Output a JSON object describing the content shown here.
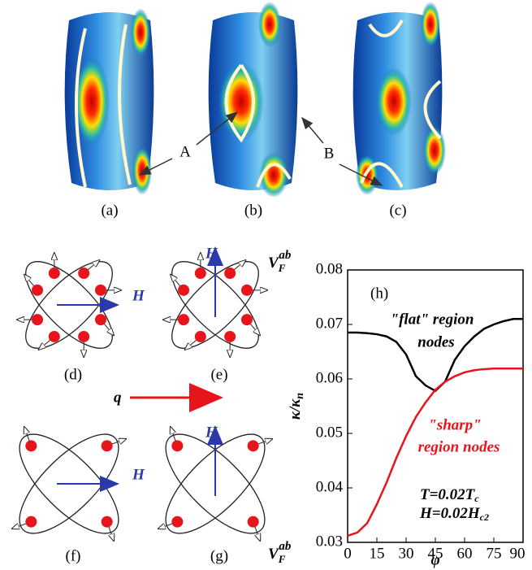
{
  "top": {
    "labels": [
      "(a)",
      "(b)",
      "(c)"
    ],
    "callouts": [
      "A",
      "B"
    ]
  },
  "diagrams": [
    {
      "label": "(d)",
      "field": "H"
    },
    {
      "label": "(e)",
      "field": "H",
      "velocity": {
        "main": "V",
        "sub": "F",
        "sup": "ab"
      }
    },
    {
      "label": "(f)",
      "field": "H"
    },
    {
      "label": "(g)",
      "field": "H",
      "velocity": {
        "main": "V",
        "sub": "F",
        "sup": "ab"
      }
    }
  ],
  "wavevector": "q",
  "chart_data": {
    "type": "line",
    "panel_label": "(h)",
    "xlabel": "φ",
    "ylabel": "κ/κ",
    "ylabel_sub": "n",
    "x": [
      0,
      5,
      10,
      15,
      20,
      25,
      30,
      35,
      40,
      45,
      50,
      55,
      60,
      65,
      70,
      75,
      80,
      85,
      90
    ],
    "series": [
      {
        "color": "#000000",
        "values": [
          0.0685,
          0.0685,
          0.0684,
          0.0682,
          0.0678,
          0.0668,
          0.0645,
          0.0605,
          0.0588,
          0.0578,
          0.0595,
          0.0635,
          0.066,
          0.0678,
          0.0692,
          0.07,
          0.0706,
          0.071,
          0.071
        ]
      },
      {
        "color": "#e8141c",
        "values": [
          0.0312,
          0.0318,
          0.0335,
          0.037,
          0.041,
          0.0455,
          0.0495,
          0.053,
          0.0557,
          0.058,
          0.0595,
          0.0605,
          0.0612,
          0.0616,
          0.0618,
          0.0619,
          0.0619,
          0.0619,
          0.0619
        ]
      }
    ],
    "xlim": [
      0,
      90
    ],
    "xticks": [
      0,
      15,
      30,
      45,
      60,
      75,
      90
    ],
    "ylim": [
      0.03,
      0.08
    ],
    "yticks": [
      0.03,
      0.04,
      0.05,
      0.06,
      0.07,
      0.08
    ],
    "annotations": {
      "flat_1": "\"flat\" region",
      "flat_2": "nodes",
      "sharp_1": "\"sharp\"",
      "sharp_2": "region nodes",
      "temp": "T=0.02T",
      "temp_sub": "c",
      "field": "H=0.02H",
      "field_sub": "c2"
    }
  }
}
